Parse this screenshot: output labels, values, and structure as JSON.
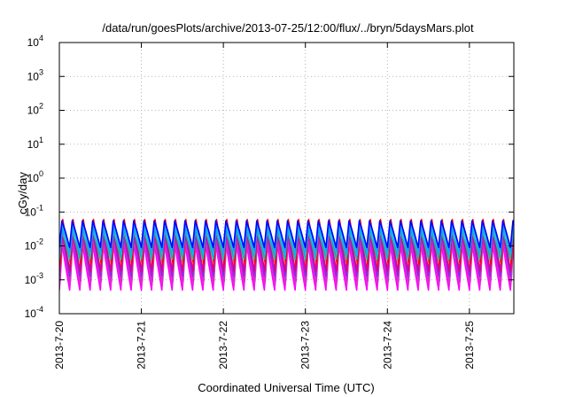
{
  "chart_data": {
    "type": "line",
    "title": "/data/run/goesPlots/archive/2013-07-25/12:00/flux/../bryn/5daysMars.plot",
    "xlabel": "Coordinated Universal Time (UTC)",
    "ylabel": "cGy/day",
    "yscale": "log",
    "ylim": [
      0.0001,
      10000
    ],
    "xlim": [
      "2013-07-20 00:00",
      "2013-07-25 13:00"
    ],
    "x_ticks": [
      "2013-7-20",
      "2013-7-21",
      "2013-7-22",
      "2013-7-23",
      "2013-7-24",
      "2013-7-25"
    ],
    "y_ticks": [
      {
        "base": "10",
        "exp": "-4"
      },
      {
        "base": "10",
        "exp": "-3"
      },
      {
        "base": "10",
        "exp": "-2"
      },
      {
        "base": "10",
        "exp": "-1"
      },
      {
        "base": "10",
        "exp": "0"
      },
      {
        "base": "10",
        "exp": "1"
      },
      {
        "base": "10",
        "exp": "2"
      },
      {
        "base": "10",
        "exp": "3"
      },
      {
        "base": "10",
        "exp": "4"
      }
    ],
    "grid": true,
    "cycle_hours": 3,
    "series": [
      {
        "color": "#ff00ff",
        "peak": 0.012,
        "trough": 0.0005
      },
      {
        "color": "#ee22dd",
        "peak": 0.016,
        "trough": 0.0007
      },
      {
        "color": "#cc33cc",
        "peak": 0.02,
        "trough": 0.0009
      },
      {
        "color": "#8a2be2",
        "peak": 0.026,
        "trough": 0.0013
      },
      {
        "color": "#dd0088",
        "peak": 0.03,
        "trough": 0.0018
      },
      {
        "color": "#ff0000",
        "peak": 0.06,
        "trough": 0.003
      },
      {
        "color": "#20b2aa",
        "peak": 0.028,
        "trough": 0.004
      },
      {
        "color": "#00bfff",
        "peak": 0.036,
        "trough": 0.0055
      },
      {
        "color": "#1e90ff",
        "peak": 0.045,
        "trough": 0.007
      },
      {
        "color": "#0000ff",
        "peak": 0.055,
        "trough": 0.009
      }
    ]
  }
}
